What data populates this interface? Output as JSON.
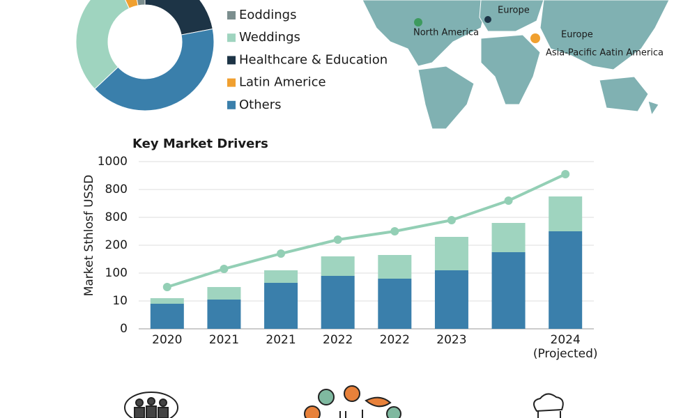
{
  "chart_data": [
    {
      "type": "pie",
      "categories": [
        "Eoddings",
        "Weddings",
        "Healthcare & Education",
        "Latin Americe",
        "Others"
      ],
      "values": [
        3,
        30,
        22,
        4,
        41
      ],
      "colors": [
        "#7b8e8e",
        "#9fd4bf",
        "#1d3446",
        "#f0a030",
        "#3a7fab"
      ]
    },
    {
      "type": "bar",
      "stacked": true,
      "title": "Key Market Drivers",
      "y_label": "Market Sthlosf USSD",
      "categories": [
        "2020",
        "2021",
        "2021",
        "2022",
        "2022",
        "2023",
        null,
        "2024 (Projected)"
      ],
      "series": [
        {
          "color": "#3a7fab",
          "values": [
            0.9,
            1.05,
            1.65,
            1.9,
            1.8,
            2.1,
            2.75,
            3.5
          ]
        },
        {
          "color": "#9fd4bf",
          "values": [
            0.2,
            0.45,
            0.45,
            0.7,
            0.85,
            1.2,
            1.05,
            1.25
          ]
        },
        {
          "kind": "line",
          "color": "#93cfb5",
          "values": [
            1.5,
            2.15,
            2.7,
            3.2,
            3.5,
            3.9,
            4.6,
            5.55
          ]
        }
      ],
      "ylim": [
        0,
        6
      ],
      "yticks": [
        {
          "value": 0,
          "label": "0"
        },
        {
          "value": 1,
          "label": "10"
        },
        {
          "value": 2,
          "label": "100"
        },
        {
          "value": 3,
          "label": "200"
        },
        {
          "value": 4,
          "label": "800"
        },
        {
          "value": 5,
          "label": "800"
        },
        {
          "value": 6,
          "label": "1000"
        }
      ],
      "grid": true
    }
  ],
  "map_labels": [
    "Europe",
    "North America",
    "Europe",
    "Asia-Pacific Aatin America"
  ]
}
